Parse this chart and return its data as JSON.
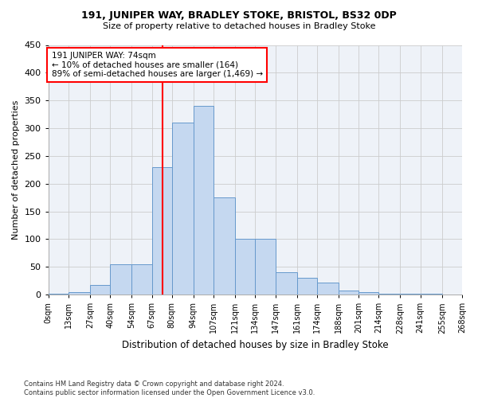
{
  "title1": "191, JUNIPER WAY, BRADLEY STOKE, BRISTOL, BS32 0DP",
  "title2": "Size of property relative to detached houses in Bradley Stoke",
  "xlabel": "Distribution of detached houses by size in Bradley Stoke",
  "ylabel": "Number of detached properties",
  "footnote": "Contains HM Land Registry data © Crown copyright and database right 2024.\nContains public sector information licensed under the Open Government Licence v3.0.",
  "bin_labels": [
    "0sqm",
    "13sqm",
    "27sqm",
    "40sqm",
    "54sqm",
    "67sqm",
    "80sqm",
    "94sqm",
    "107sqm",
    "121sqm",
    "134sqm",
    "147sqm",
    "161sqm",
    "174sqm",
    "188sqm",
    "201sqm",
    "214sqm",
    "228sqm",
    "241sqm",
    "255sqm",
    "268sqm"
  ],
  "bar_values": [
    2,
    5,
    18,
    55,
    55,
    230,
    310,
    340,
    175,
    100,
    100,
    40,
    30,
    22,
    8,
    5,
    2,
    2,
    1,
    0
  ],
  "bin_edges": [
    0,
    13,
    27,
    40,
    54,
    67,
    80,
    94,
    107,
    121,
    134,
    147,
    161,
    174,
    188,
    201,
    214,
    228,
    241,
    255,
    268
  ],
  "bar_color": "#c5d8f0",
  "bar_edge_color": "#6699cc",
  "vline_x": 74,
  "vline_color": "red",
  "annotation_text": "191 JUNIPER WAY: 74sqm\n← 10% of detached houses are smaller (164)\n89% of semi-detached houses are larger (1,469) →",
  "annotation_box_color": "white",
  "annotation_box_edge": "red",
  "ylim": [
    0,
    450
  ],
  "yticks": [
    0,
    50,
    100,
    150,
    200,
    250,
    300,
    350,
    400,
    450
  ],
  "grid_color": "#cccccc",
  "bg_color": "#ffffff",
  "plot_bg_color": "#eef2f8"
}
